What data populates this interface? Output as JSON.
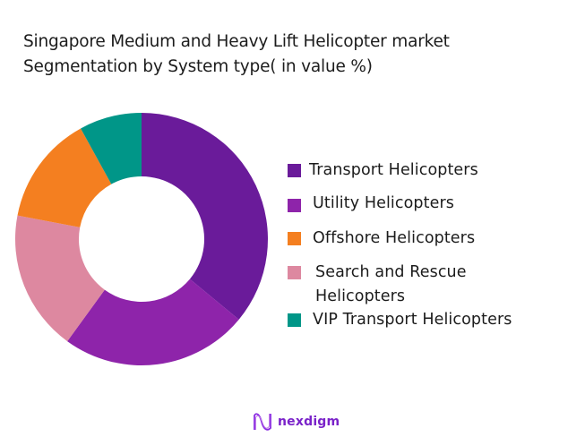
{
  "title": {
    "line1": "Singapore Medium and Heavy Lift Helicopter market",
    "line2": "Segmentation by System type( in value %)"
  },
  "legend": {
    "items": [
      {
        "label": "Transport Helicopters",
        "color": "#6a1b9a"
      },
      {
        "label": "Utility Helicopters",
        "color": "#8e24aa"
      },
      {
        "label": "Offshore Helicopters",
        "color": "#f47f20"
      },
      {
        "label_line1": "Search and Rescue",
        "label_line2": "Helicopters",
        "label": "Search and Rescue Helicopters",
        "color": "#dd88a0"
      },
      {
        "label": "VIP Transport Helicopters",
        "color": "#009688"
      }
    ]
  },
  "logo": {
    "text": "nexdigm"
  },
  "chart_data": {
    "type": "pie",
    "subtype": "donut",
    "title": "Singapore Medium and Heavy Lift Helicopter market Segmentation by System type( in value %)",
    "categories": [
      "Transport Helicopters",
      "Utility Helicopters",
      "Search and Rescue Helicopters",
      "Offshore Helicopters",
      "VIP Transport Helicopters"
    ],
    "values": [
      36,
      24,
      18,
      14,
      8
    ],
    "colors": [
      "#6a1b9a",
      "#8e24aa",
      "#dd88a0",
      "#f47f20",
      "#009688"
    ],
    "legend_order": [
      "Transport Helicopters",
      "Utility Helicopters",
      "Offshore Helicopters",
      "Search and Rescue Helicopters",
      "VIP Transport Helicopters"
    ],
    "legend_position": "right",
    "start_angle_deg": 0,
    "direction": "clockwise",
    "data_labels": false
  }
}
